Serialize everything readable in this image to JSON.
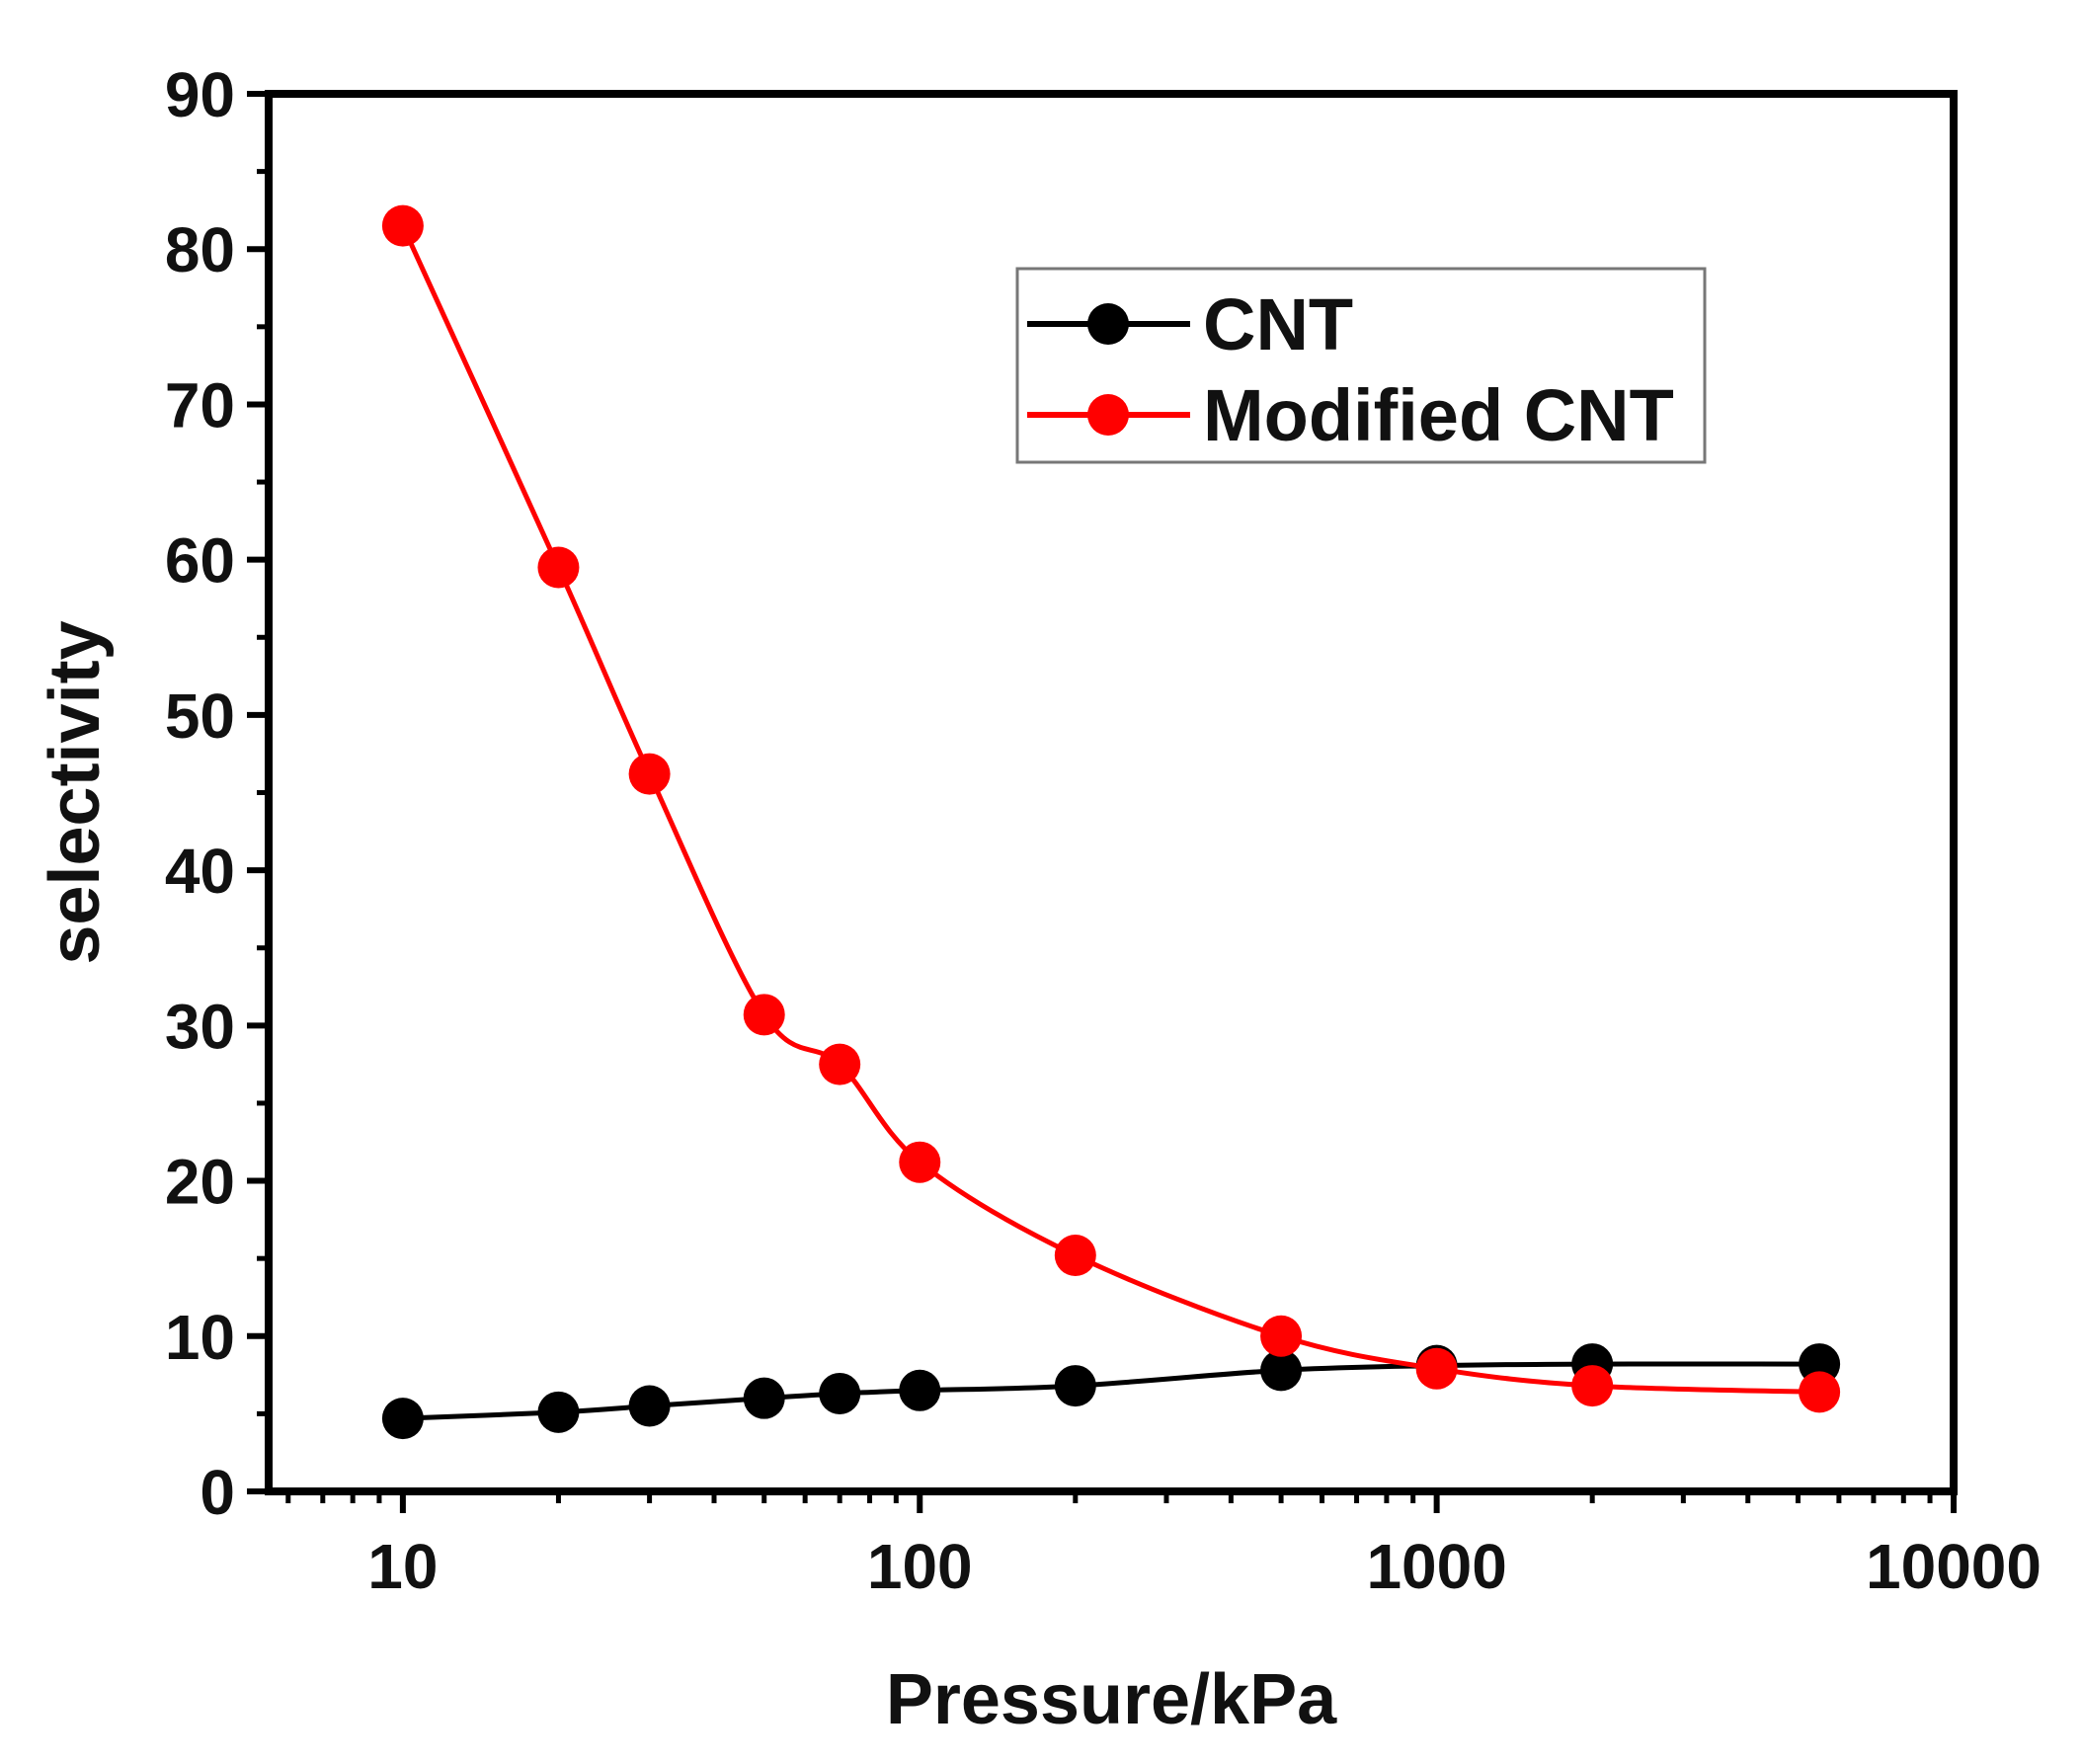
{
  "chart_data": {
    "type": "line",
    "title": "",
    "xlabel": "Pressure/kPa",
    "ylabel": "selectivity",
    "xscale": "log",
    "xlim": [
      5.5,
      10000
    ],
    "ylim": [
      0,
      90
    ],
    "x_ticks": [
      10,
      100,
      1000,
      10000
    ],
    "x_tick_labels": [
      "10",
      "100",
      "1000",
      "10000"
    ],
    "y_ticks": [
      0,
      10,
      20,
      30,
      40,
      50,
      60,
      70,
      80,
      90
    ],
    "y_tick_labels": [
      "0",
      "10",
      "20",
      "30",
      "40",
      "50",
      "60",
      "70",
      "80",
      "90"
    ],
    "legend_position": "top-right",
    "series": [
      {
        "name": "CNT",
        "color": "#000000",
        "x": [
          10,
          20,
          30,
          50,
          70,
          100,
          200,
          500,
          1000,
          2000,
          5500
        ],
        "y": [
          4.7,
          5.1,
          5.5,
          6.0,
          6.3,
          6.5,
          6.8,
          7.8,
          8.1,
          8.2,
          8.2
        ]
      },
      {
        "name": "Modified CNT",
        "color": "#ff0000",
        "x": [
          10,
          20,
          30,
          50,
          70,
          100,
          200,
          500,
          1000,
          2000,
          5500
        ],
        "y": [
          81.5,
          59.5,
          46.2,
          30.7,
          27.5,
          21.2,
          15.2,
          10.0,
          7.9,
          6.8,
          6.4
        ]
      }
    ]
  }
}
